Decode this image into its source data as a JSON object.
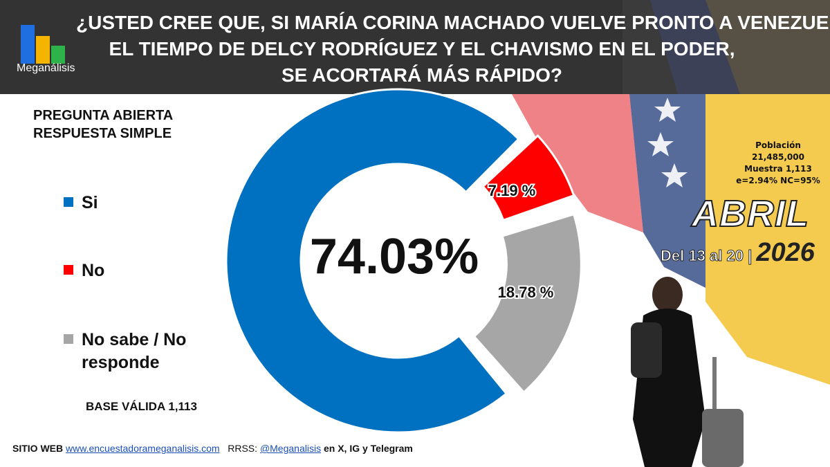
{
  "header": {
    "logo_text": "Meganálisis",
    "logo_colors": [
      "#1f6fe0",
      "#f5b400",
      "#2eb34a"
    ],
    "title_lines": [
      "¿USTED CREE QUE, SI MARÍA CORINA MACHADO VUELVE PRONTO A VENEZUELA,",
      "EL TIEMPO DE DELCY RODRÍGUEZ Y EL CHAVISMO EN EL PODER,",
      "SE ACORTARÁ MÁS RÁPIDO?"
    ]
  },
  "question_type": [
    "PREGUNTA  ABIERTA",
    "RESPUESTA SIMPLE"
  ],
  "legend": [
    {
      "label": "Si",
      "color": "#0070c0"
    },
    {
      "label": "No",
      "color": "#ff0000"
    },
    {
      "label": "No sabe / No responde",
      "color": "#a6a6a6"
    }
  ],
  "base_text": "BASE VÁLIDA 1,113",
  "chart_data": {
    "type": "pie",
    "subtype": "donut",
    "categories": [
      "Si",
      "No",
      "No sabe / No responde"
    ],
    "values": [
      74.03,
      7.19,
      18.78
    ],
    "labels": [
      "74.03%",
      "7.19 %",
      "18.78 %"
    ],
    "colors": [
      "#0070c0",
      "#ff0000",
      "#a6a6a6"
    ]
  },
  "survey_info": {
    "lines": [
      "Población",
      "21,485,000",
      "Muestra 1,113",
      "e=2.94%  NC=95%"
    ]
  },
  "period": {
    "month": "ABRIL",
    "range_prefix": "Del",
    "day_from": "13",
    "range_mid": "al",
    "day_to": "20",
    "separator": "|",
    "year": "2026"
  },
  "footer": {
    "site_label": "SITIO WEB",
    "site_url": "www.encuestadorameganalisis.com",
    "rrss_label": "RRSS:",
    "handle": "@Meganalisis",
    "networks": "en X, IG y Telegram"
  }
}
